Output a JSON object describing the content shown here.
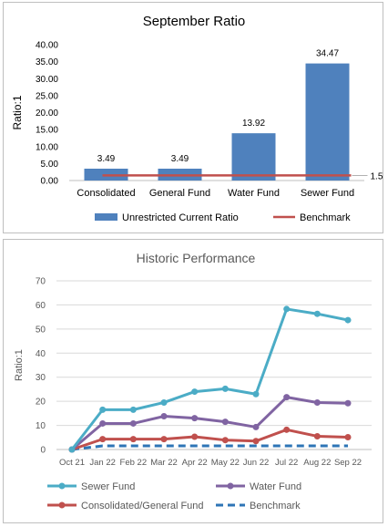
{
  "chart_data": [
    {
      "type": "bar",
      "title": "September Ratio",
      "ylabel": "Ratio:1",
      "xlabel": "",
      "ylim": [
        0,
        40
      ],
      "ytick_labels": [
        "0.00",
        "5.00",
        "10.00",
        "15.00",
        "20.00",
        "25.00",
        "30.00",
        "35.00",
        "40.00"
      ],
      "categories": [
        "Consolidated",
        "General Fund",
        "Water Fund",
        "Sewer Fund"
      ],
      "series": [
        {
          "name": "Unrestricted Current Ratio",
          "values": [
            3.49,
            3.49,
            13.92,
            34.47
          ],
          "color": "#4f81bd"
        },
        {
          "name": "Benchmark",
          "values": [
            1.5,
            1.5,
            1.5,
            1.5
          ],
          "color": "#c0504d",
          "kind": "line"
        }
      ],
      "data_labels": [
        "3.49",
        "3.49",
        "13.92",
        "34.47"
      ],
      "benchmark_label": "1.5",
      "grid": false,
      "legend": "bottom"
    },
    {
      "type": "line",
      "title": "Historic Performance",
      "ylabel": "Ratio:1",
      "xlabel": "",
      "ylim": [
        0,
        70
      ],
      "ytick_labels": [
        "0",
        "10",
        "20",
        "30",
        "40",
        "50",
        "60",
        "70"
      ],
      "categories": [
        "Oct 21",
        "Jan 22",
        "Feb 22",
        "Mar 22",
        "Apr 22",
        "May 22",
        "Jun 22",
        "Jul 22",
        "Aug 22",
        "Sep 22"
      ],
      "series": [
        {
          "name": "Sewer Fund",
          "values": [
            0,
            16.5,
            16.5,
            19.5,
            24,
            25.2,
            23,
            58.3,
            56.3,
            53.7
          ],
          "color": "#4bacc6",
          "marker": true
        },
        {
          "name": "Water Fund",
          "values": [
            0,
            10.8,
            10.8,
            13.8,
            13,
            11.5,
            9.3,
            21.7,
            19.5,
            19.2
          ],
          "color": "#8064a2",
          "marker": true
        },
        {
          "name": "Consolidated/General Fund",
          "values": [
            0,
            4.3,
            4.3,
            4.3,
            5.3,
            3.9,
            3.5,
            8.2,
            5.5,
            5.1
          ],
          "color": "#c0504d",
          "marker": true
        },
        {
          "name": "Benchmark",
          "values": [
            0,
            1.5,
            1.5,
            1.5,
            1.5,
            1.5,
            1.5,
            1.5,
            1.5,
            1.5
          ],
          "color": "#2e75b6",
          "dashed": true
        }
      ],
      "grid": true,
      "legend": "bottom"
    }
  ]
}
